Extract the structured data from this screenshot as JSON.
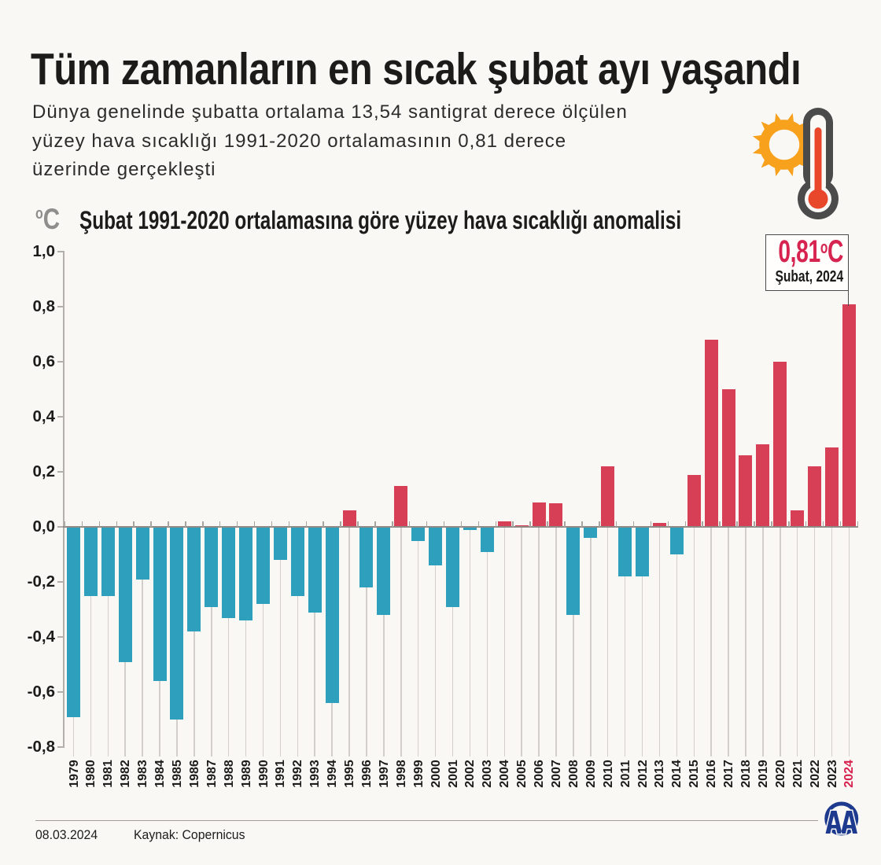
{
  "page": {
    "title": "Tüm zamanların en sıcak şubat ayı yaşandı",
    "subtitle_lines": [
      "Dünya genelinde şubatta ortalama 13,54 santigrat derece ölçülen",
      "yüzey hava sıcaklığı 1991-2020 ortalamasının 0,81 derece",
      "üzerinde gerçekleşti"
    ],
    "background_color": "#faf8f5"
  },
  "icons": {
    "sun_thermometer": {
      "sun_color": "#f7a11d",
      "mercury_color": "#e8472b",
      "outline_color": "#4b4b4b"
    },
    "aa_logo": {
      "text": "AA",
      "color": "#1d3a8f"
    }
  },
  "chart": {
    "unit_sup": "o",
    "unit_letter": "C",
    "heading": "Şubat 1991-2020 ortalamasına göre yüzey hava sıcaklığı anomalisi",
    "badge": {
      "value": "0,81",
      "unit_sup": "o",
      "unit_letter": "C",
      "period": "Şubat, 2024"
    }
  },
  "chart_data": {
    "type": "bar",
    "title": "Şubat 1991-2020 ortalamasına göre yüzey hava sıcaklığı anomalisi",
    "ylabel": "°C",
    "ylim": [
      -0.8,
      1.0
    ],
    "y_tick_labels": [
      "1,0",
      "0,8",
      "0,6",
      "0,4",
      "0,2",
      "0,0",
      "-0,2",
      "-0,4",
      "-0,6",
      "-0,8"
    ],
    "y_tick_values": [
      1.0,
      0.8,
      0.6,
      0.4,
      0.2,
      0.0,
      -0.2,
      -0.4,
      -0.6,
      -0.8
    ],
    "categories": [
      1979,
      1980,
      1981,
      1982,
      1983,
      1984,
      1985,
      1986,
      1987,
      1988,
      1989,
      1990,
      1991,
      1992,
      1993,
      1994,
      1995,
      1996,
      1997,
      1998,
      1999,
      2000,
      2001,
      2002,
      2003,
      2004,
      2005,
      2006,
      2007,
      2008,
      2009,
      2010,
      2011,
      2012,
      2013,
      2014,
      2015,
      2016,
      2017,
      2018,
      2019,
      2020,
      2021,
      2022,
      2023,
      2024
    ],
    "values": [
      -0.69,
      -0.25,
      -0.25,
      -0.49,
      -0.19,
      -0.56,
      -0.7,
      -0.38,
      -0.29,
      -0.33,
      -0.34,
      -0.28,
      -0.12,
      -0.25,
      -0.31,
      -0.64,
      0.06,
      -0.22,
      -0.32,
      0.15,
      -0.05,
      -0.14,
      -0.29,
      -0.01,
      -0.09,
      0.02,
      0.005,
      0.09,
      0.085,
      -0.32,
      -0.04,
      0.22,
      -0.18,
      -0.18,
      0.015,
      -0.1,
      0.19,
      0.68,
      0.5,
      0.26,
      0.3,
      0.6,
      0.06,
      0.22,
      0.29,
      0.81
    ],
    "positive_color": "#d73f57",
    "negative_color": "#2f9fbe",
    "highlight_category": "2024",
    "annotation": {
      "value": "0,81°C",
      "label": "Şubat, 2024",
      "target_year": 2024
    },
    "legend": null,
    "grid": "vertical-below-zero"
  },
  "footer": {
    "date": "08.03.2024",
    "source": "Kaynak: Copernicus"
  }
}
